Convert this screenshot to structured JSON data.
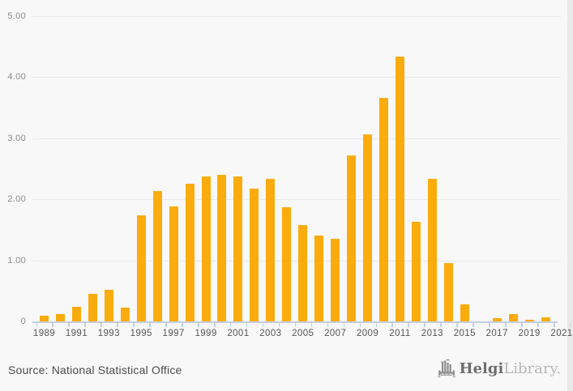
{
  "source_note": "Source: National Statistical Office",
  "logo": {
    "brand_bold": "Helgi",
    "brand_light": "Library.",
    "icon": "bridge-bars-icon",
    "icon_color": "#8d8d8d"
  },
  "colors": {
    "background": "#f8f8f8",
    "bar": "#faac0e",
    "gridline": "#e9e9e9",
    "axis": "#c7cee2",
    "y_label": "#8a8a8a",
    "x_label": "#555555",
    "source_text": "#4d4d4d"
  },
  "chart_data": {
    "type": "bar",
    "title": "",
    "xlabel": "",
    "ylabel": "",
    "categories": [
      1989,
      1990,
      1991,
      1992,
      1993,
      1994,
      1995,
      1996,
      1997,
      1998,
      1999,
      2000,
      2001,
      2002,
      2003,
      2004,
      2005,
      2006,
      2007,
      2008,
      2009,
      2010,
      2011,
      2012,
      2013,
      2014,
      2015,
      2016,
      2017,
      2018,
      2019,
      2020
    ],
    "values": [
      0.09,
      0.12,
      0.24,
      0.45,
      0.52,
      0.22,
      1.74,
      2.13,
      1.88,
      2.25,
      2.38,
      2.4,
      2.38,
      2.17,
      2.33,
      1.87,
      1.58,
      1.4,
      1.35,
      2.72,
      3.07,
      3.66,
      4.34,
      1.63,
      2.33,
      0.96,
      0.28,
      0.0,
      0.05,
      0.12,
      0.03,
      0.07
    ],
    "bar_color": "#faac0e",
    "ylim": [
      0,
      5
    ],
    "yticks": [
      {
        "value": 0,
        "label": "0"
      },
      {
        "value": 1,
        "label": "1.00"
      },
      {
        "value": 2,
        "label": "2.00"
      },
      {
        "value": 3,
        "label": "3.00"
      },
      {
        "value": 4,
        "label": "4.00"
      },
      {
        "value": 5,
        "label": "5.00"
      }
    ],
    "axis_years": [
      1989,
      1990,
      1991,
      1992,
      1993,
      1994,
      1995,
      1996,
      1997,
      1998,
      1999,
      2000,
      2001,
      2002,
      2003,
      2004,
      2005,
      2006,
      2007,
      2008,
      2009,
      2010,
      2011,
      2012,
      2013,
      2014,
      2015,
      2016,
      2017,
      2018,
      2019,
      2020,
      2021
    ],
    "xtick_labels": [
      "1989",
      "1991",
      "1993",
      "1995",
      "1997",
      "1999",
      "2001",
      "2003",
      "2005",
      "2007",
      "2009",
      "2011",
      "2013",
      "2015",
      "2017",
      "2019",
      "2021"
    ],
    "grid": "horizontal",
    "legend": "none"
  }
}
